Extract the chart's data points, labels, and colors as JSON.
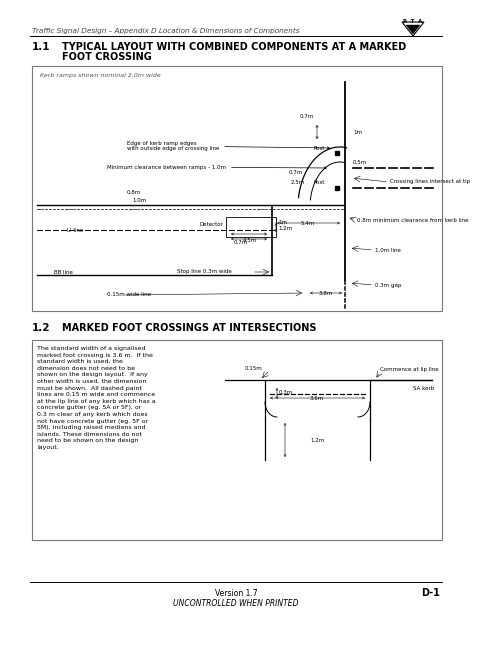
{
  "page_bg": "#ffffff",
  "header_text": "Traffic Signal Design – Appendix D Location & Dimensions of Components",
  "section1_number": "1.1",
  "section1_title_line1": "Typical layout with combined components at a marked",
  "section1_title_line2": "foot crossing",
  "section2_number": "1.2",
  "section2_title": "Marked foot crossings at intersections",
  "footer_version": "Version 1.7",
  "footer_note": "UNCONTROLLED WHEN PRINTED",
  "footer_page": "D-1",
  "box1_note": "Kerb ramps shown nominal 2.0m wide",
  "box2_text": "The standard width of a signalised\nmarked foot crossing is 3.6 m.  If the\nstandard width is used, the\ndimension does not need to be\nshown on the design layout.  If any\nother width is used, the dimension\nmust be shown.  All dashed paint\nlines are 0.15 m wide and commence\nat the lip line of any kerb which has a\nconcrete gutter (eg. 5A or 5F), or\n0.3 m clear of any kerb which does\nnot have concrete gutter (eg. 5F or\n5M), including raised medians and\nislands. These dimensions do not\nneed to be shown on the design\nlayout.",
  "label_edge_kerb": "Edge of kerb ramp edges\nwith outside edge of crossing line",
  "label_min_clear": "Minimum clearance between ramps - 1.0m",
  "label_crossing_tip": "Crossing lines intersect at tip",
  "label_08_clear": "0.8m minimum clearance from kerb line",
  "label_10_line": "1.0m line",
  "label_03_gap": "0.3m gap",
  "label_detector": "Detector",
  "label_li": "LI line",
  "label_bb": "BB line",
  "label_stop": "Stop line 0.3m wide",
  "label_015_wide": "0.15m wide line",
  "box2_label_015": "0.15m",
  "box2_label_commence": "Commence at lip line",
  "box2_label_sakerb": "SA kerb",
  "box2_label_03": "0.3m",
  "box2_label_36": "3.6m",
  "box2_label_12": "1.2m"
}
